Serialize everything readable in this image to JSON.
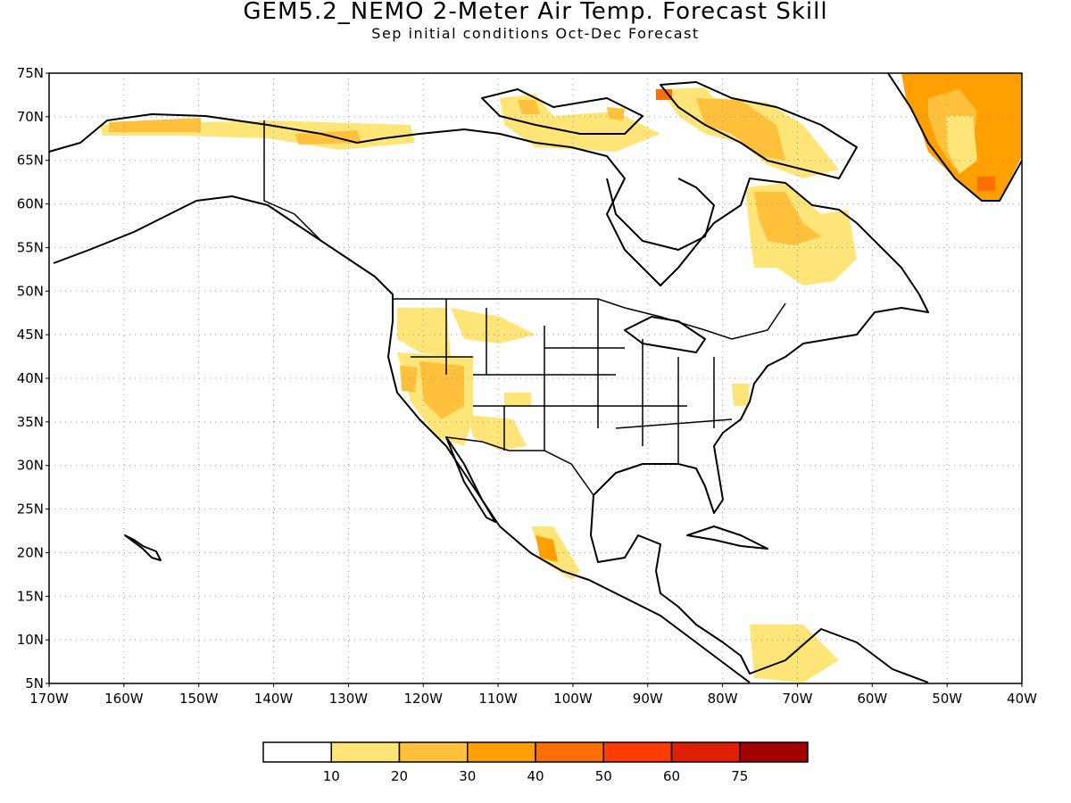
{
  "title": "GEM5.2_NEMO 2-Meter Air Temp. Forecast Skill",
  "subtitle": "Sep initial conditions  Oct-Dec Forecast",
  "lat_labels": [
    "75N",
    "70N",
    "65N",
    "60N",
    "55N",
    "50N",
    "45N",
    "40N",
    "35N",
    "30N",
    "25N",
    "20N",
    "15N",
    "10N",
    "5N"
  ],
  "lon_labels": [
    "170W",
    "160W",
    "150W",
    "140W",
    "130W",
    "120W",
    "110W",
    "100W",
    "90W",
    "80W",
    "70W",
    "60W",
    "50W",
    "40W"
  ],
  "legend": {
    "labels": [
      "10",
      "20",
      "30",
      "40",
      "50",
      "60",
      "75"
    ],
    "colors": [
      "#ffffff",
      "#ffe578",
      "#ffc13c",
      "#ffa000",
      "#ff6e00",
      "#ff3c00",
      "#e01e00",
      "#a50000"
    ]
  },
  "colors": {
    "skill_10_20": "#ffe578",
    "skill_20_30": "#ffc13c",
    "skill_30_40": "#ffa000",
    "skill_40_50": "#ff6e00",
    "skill_50_60": "#ff3c00",
    "coast": "#000000",
    "grid": "#9a9a9a"
  }
}
